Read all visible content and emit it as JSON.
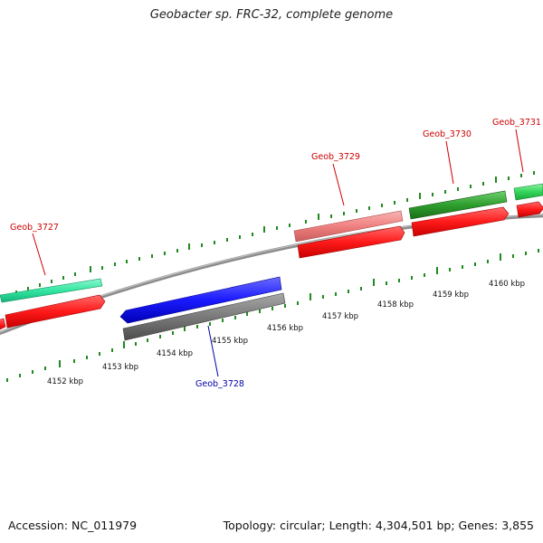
{
  "title": "Geobacter sp. FRC-32, complete genome",
  "accession": "Accession: NC_011979",
  "summary": "Topology: circular; Length: 4,304,501 bp; Genes: 3,855",
  "colors": {
    "backbone": "#8c8c8c",
    "tick": "#1f8a1f",
    "forward_cds": "#ff1a1a",
    "reverse_cds": "#1a1aff",
    "gene_label_forward": "#cc0000",
    "gene_label_reverse": "#0000aa"
  },
  "scale_labels": [
    "4152 kbp",
    "4153 kbp",
    "4154 kbp",
    "4155 kbp",
    "4156 kbp",
    "4157 kbp",
    "4158 kbp",
    "4159 kbp",
    "4160 kbp"
  ],
  "genes": [
    {
      "name": "Geob_3727",
      "strand": "forward",
      "gene_color": "#33e6a0"
    },
    {
      "name": "Geob_3728",
      "strand": "reverse",
      "gene_color": "#7a7a7a"
    },
    {
      "name": "Geob_3729",
      "strand": "forward",
      "gene_color": "#f08080"
    },
    {
      "name": "Geob_3730",
      "strand": "forward",
      "gene_color": "#2e9e2e"
    },
    {
      "name": "Geob_3731",
      "strand": "forward",
      "gene_color": "#33d65a"
    }
  ]
}
